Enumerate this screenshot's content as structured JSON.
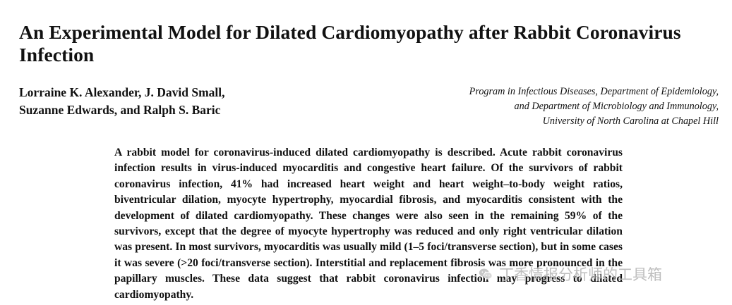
{
  "paper": {
    "title": "An Experimental Model for Dilated Cardiomyopathy after Rabbit Coronavirus Infection",
    "authors": [
      "Lorraine K. Alexander, J. David Small,",
      "Suzanne Edwards, and Ralph S. Baric"
    ],
    "affiliation": [
      "Program in Infectious Diseases, Department of Epidemiology,",
      "and Department of Microbiology and Immunology,",
      "University of North Carolina at Chapel Hill"
    ],
    "abstract": "A rabbit model for coronavirus-induced dilated cardiomyopathy is described. Acute rabbit coronavirus infection results in virus-induced myocarditis and congestive heart failure. Of the survivors of rabbit coronavirus infection, 41% had increased heart weight and heart weight–to-body weight ratios, biventricular dilation, myocyte hypertrophy, myocardial fibrosis, and myocarditis consistent with the development of dilated cardiomyopathy. These changes were also seen in the remaining 59% of the survivors, except that the degree of myocyte hypertrophy was reduced and only right ventricular dilation was present. In most survivors, myocarditis was usually mild (1–5 foci/transverse section), but in some cases it was severe (>20 foci/transverse section). Interstitial and replacement fibrosis was more pronounced in the papillary muscles. These data suggest that rabbit coronavirus infection may progress to dilated cardiomyopathy."
  },
  "watermark": {
    "icon": "wechat-icon",
    "text": "丁香情报分析师的工具箱"
  }
}
